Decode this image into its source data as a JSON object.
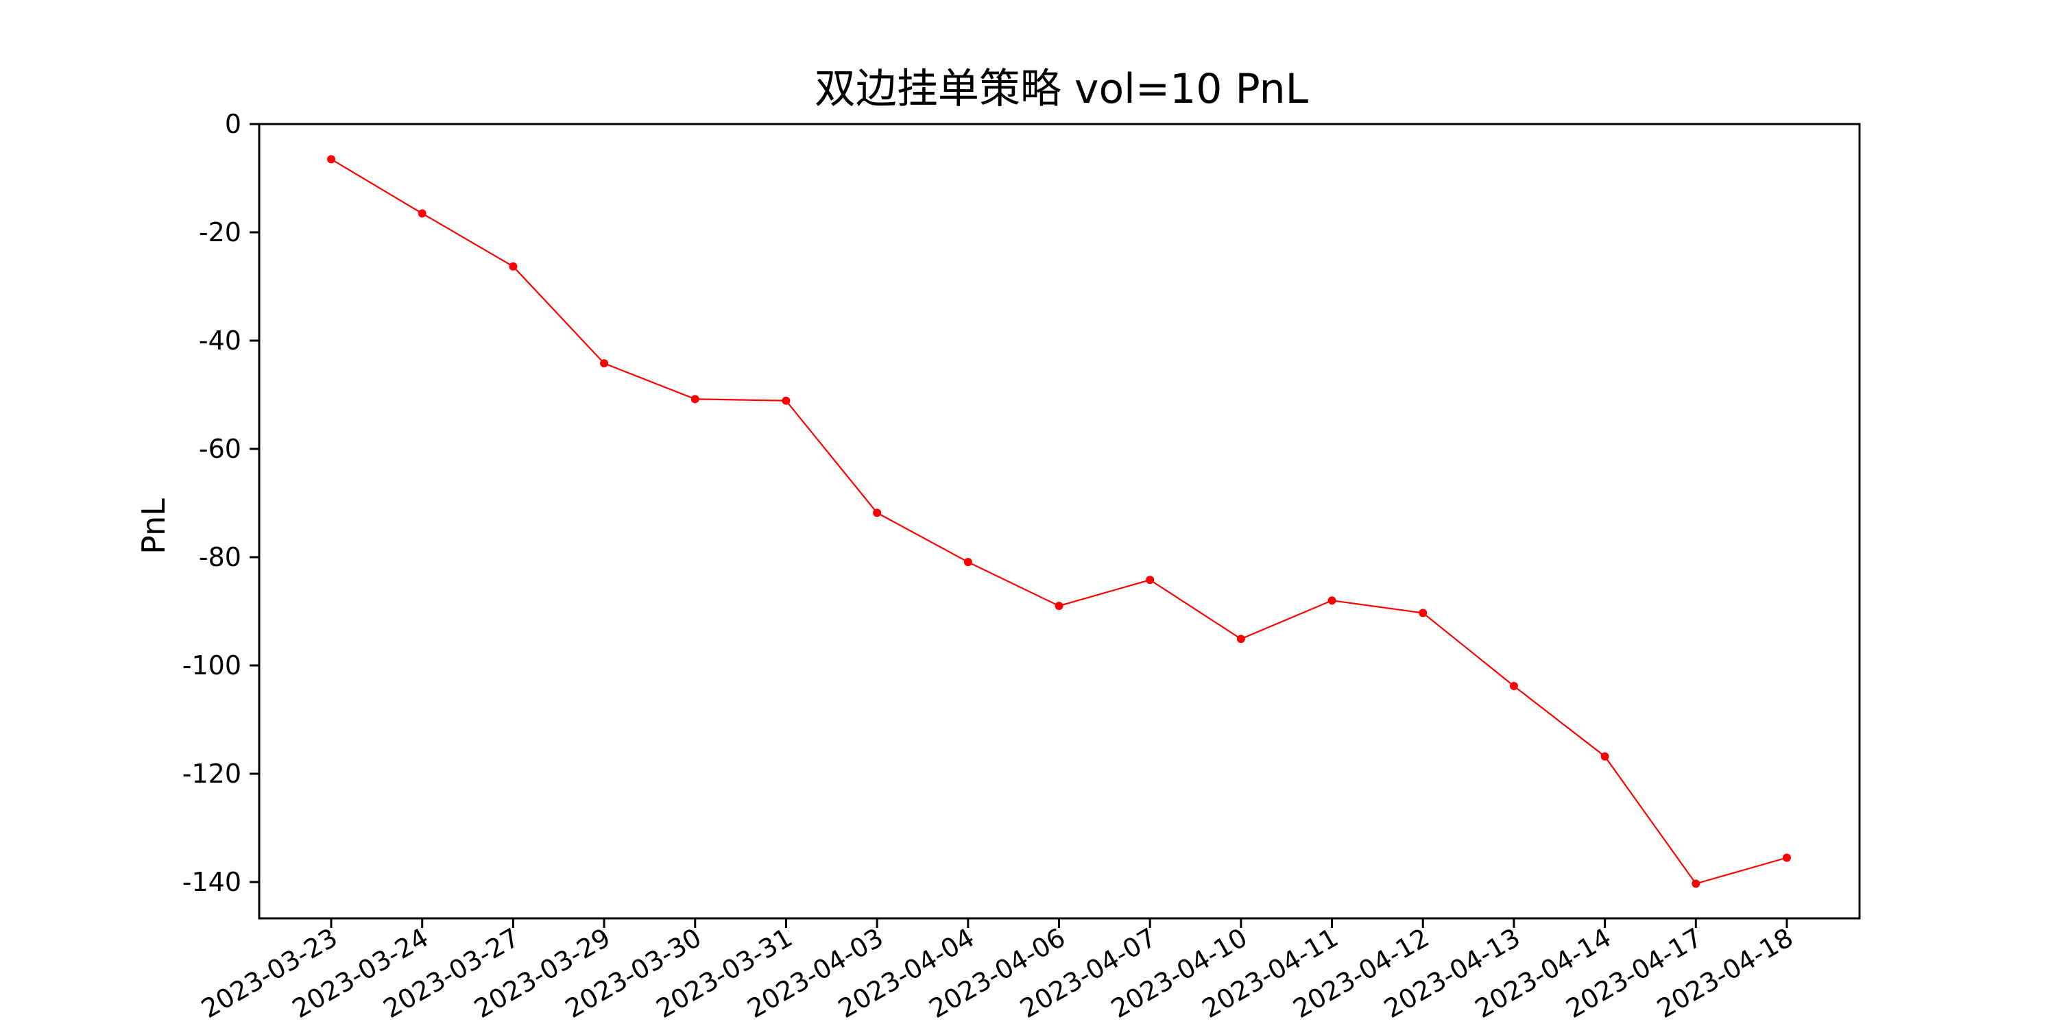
{
  "chart_data": {
    "type": "line",
    "title": "双边挂单策略 vol=10 PnL",
    "xlabel": "",
    "ylabel": "PnL",
    "x": [
      "2023-03-23",
      "2023-03-24",
      "2023-03-27",
      "2023-03-29",
      "2023-03-30",
      "2023-03-31",
      "2023-04-03",
      "2023-04-04",
      "2023-04-06",
      "2023-04-07",
      "2023-04-10",
      "2023-04-11",
      "2023-04-12",
      "2023-04-13",
      "2023-04-14",
      "2023-04-17",
      "2023-04-18"
    ],
    "series": [
      {
        "color": "#ff0000",
        "values": [
          -6.5,
          -16.5,
          -26.3,
          -44.2,
          -50.8,
          -51.1,
          -71.8,
          -80.9,
          -89.0,
          -84.2,
          -95.1,
          -88.0,
          -90.3,
          -103.8,
          -116.8,
          -140.3,
          -135.5
        ]
      }
    ],
    "ylim": [
      -147,
      0
    ],
    "yticks": [
      0,
      -20,
      -40,
      -60,
      -80,
      -100,
      -120,
      -140
    ],
    "grid": false,
    "legend": "none"
  }
}
